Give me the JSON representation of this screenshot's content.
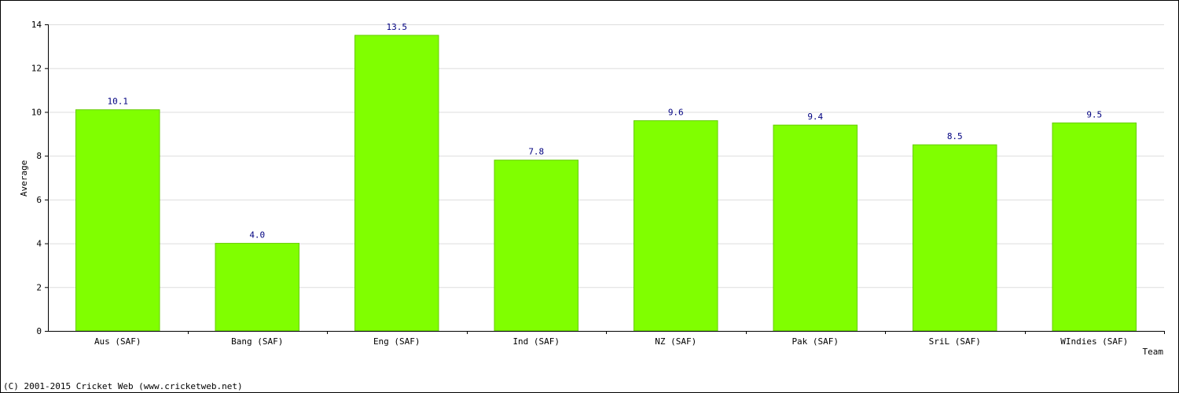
{
  "chart_data": {
    "type": "bar",
    "categories": [
      "Aus (SAF)",
      "Bang (SAF)",
      "Eng (SAF)",
      "Ind (SAF)",
      "NZ (SAF)",
      "Pak (SAF)",
      "SriL (SAF)",
      "WIndies (SAF)"
    ],
    "values": [
      10.1,
      4.0,
      13.5,
      7.8,
      9.6,
      9.4,
      8.5,
      9.5
    ],
    "value_labels": [
      "10.1",
      "4.0",
      "13.5",
      "7.8",
      "9.6",
      "9.4",
      "8.5",
      "9.5"
    ],
    "xlabel": "Team",
    "ylabel": "Average",
    "ylim": [
      0,
      14
    ],
    "yticks": [
      0,
      2,
      4,
      6,
      8,
      10,
      12,
      14
    ],
    "grid": true,
    "colors": {
      "bar_fill": "#80ff00",
      "bar_stroke": "#66cc00",
      "grid": "#dddddd",
      "data_label": "#000080"
    }
  },
  "footer": {
    "copyright": "(C) 2001-2015 Cricket Web (www.cricketweb.net)"
  }
}
